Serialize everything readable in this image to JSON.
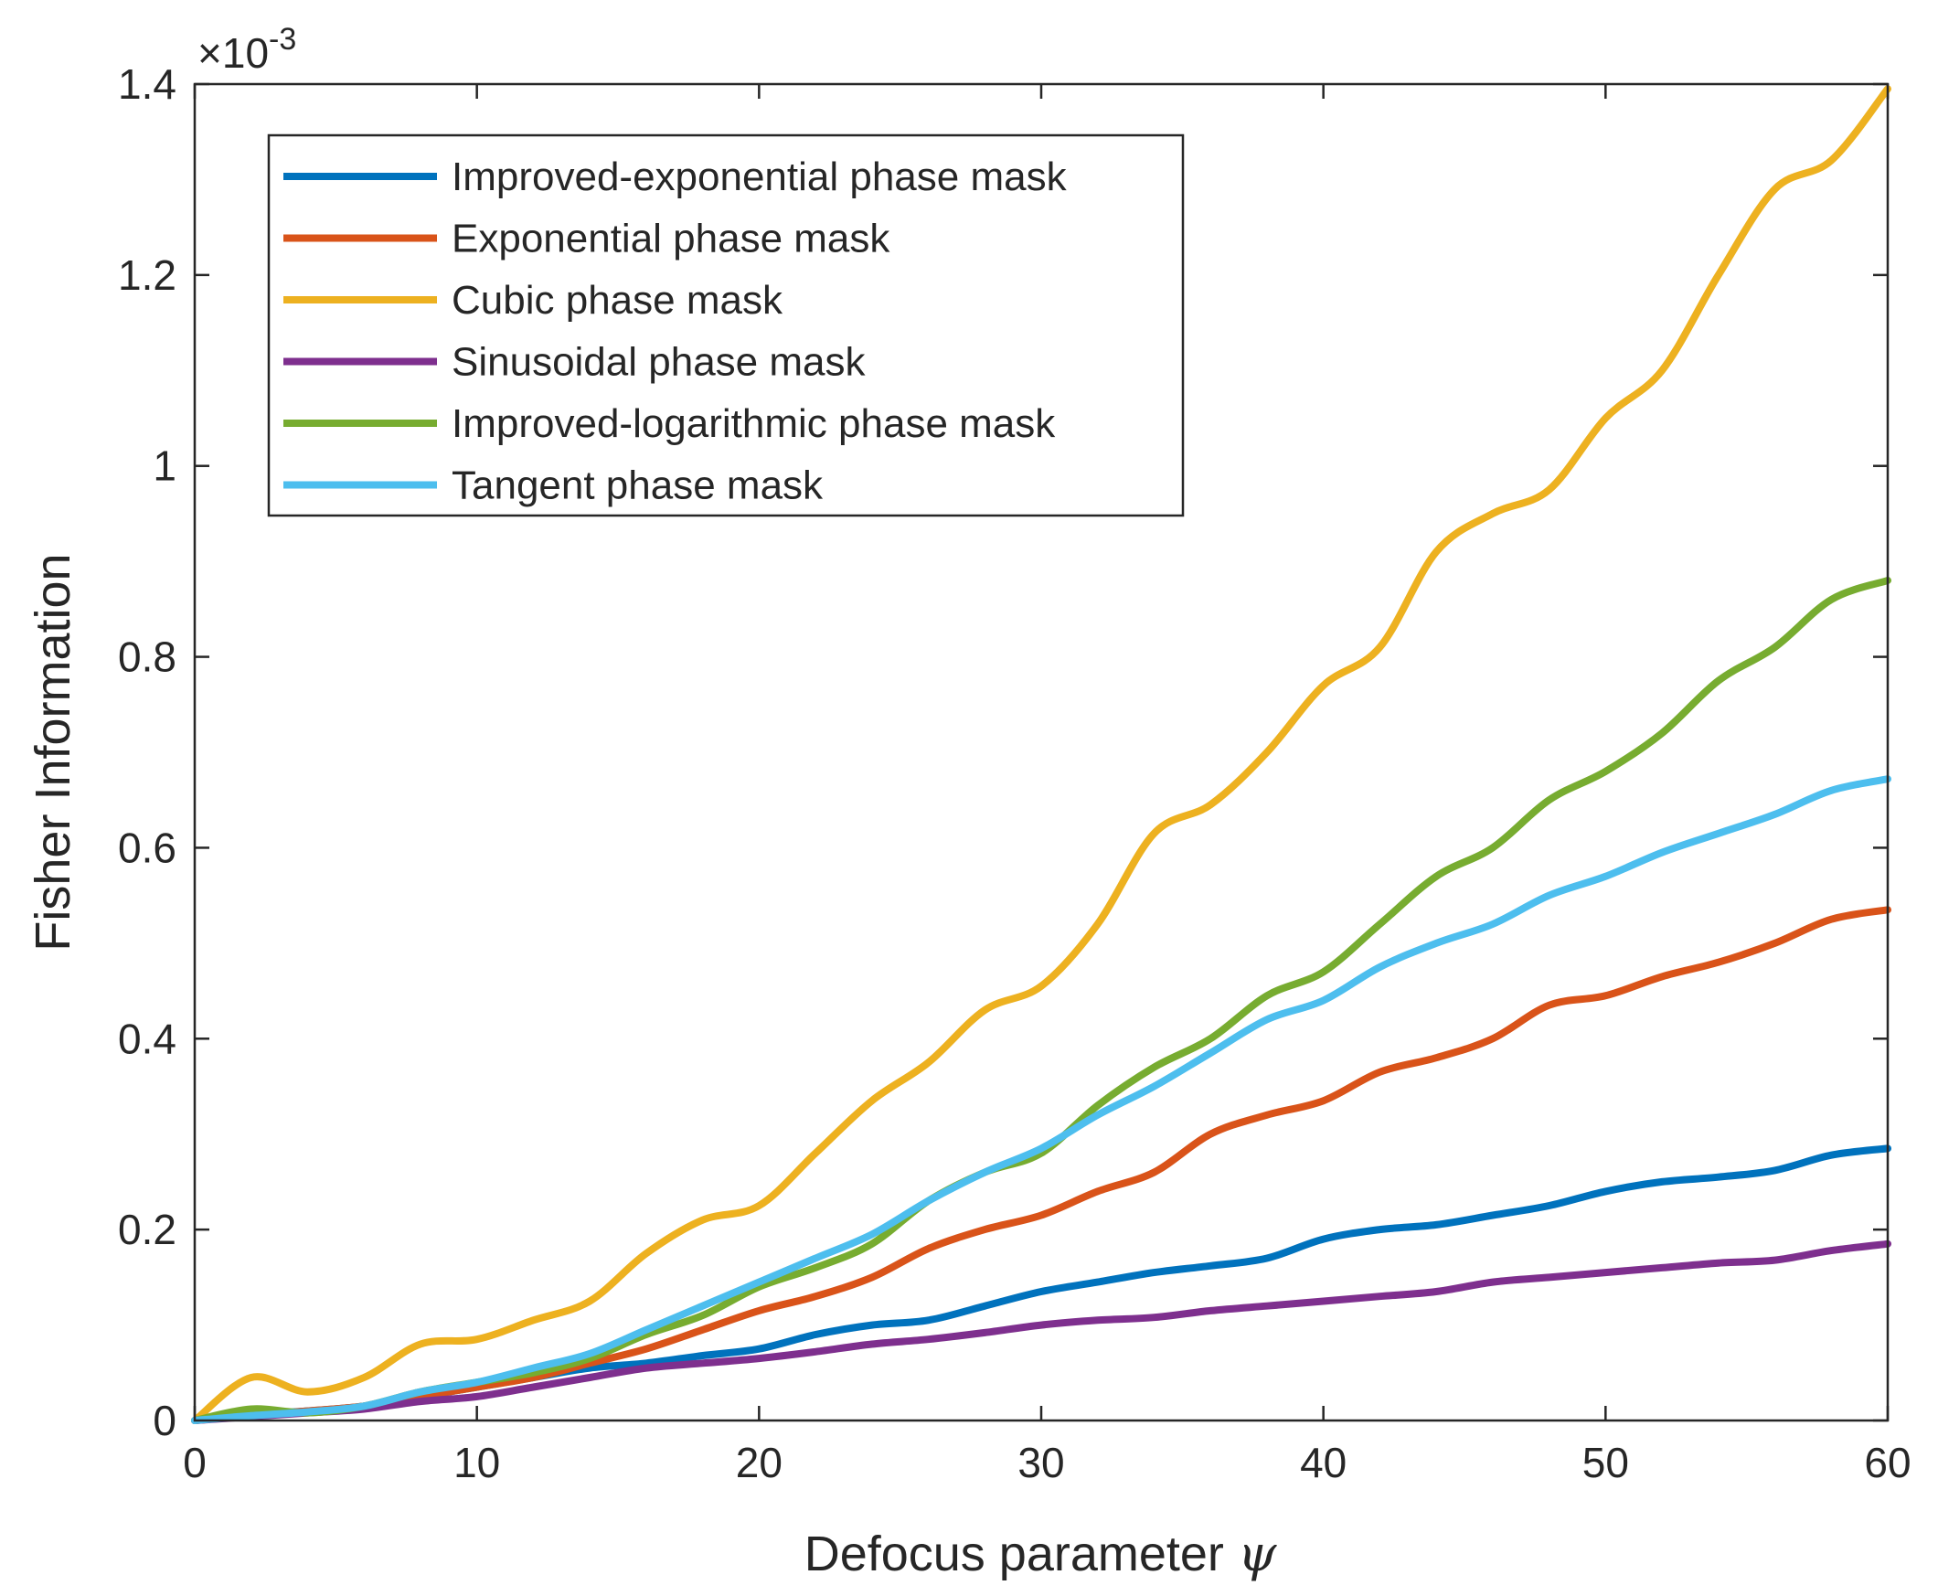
{
  "chart_data": {
    "type": "line",
    "title": "",
    "xlabel": "Defocus parameter",
    "xlabel_symbol": "ψ",
    "ylabel": "Fisher Information",
    "y_exponent_label": "×10",
    "y_exponent_power": "-3",
    "xlim": [
      0,
      60
    ],
    "ylim": [
      0,
      1.4
    ],
    "x_ticks": [
      0,
      10,
      20,
      30,
      40,
      50,
      60
    ],
    "x_tick_labels": [
      "0",
      "10",
      "20",
      "30",
      "40",
      "50",
      "60"
    ],
    "y_ticks": [
      0,
      0.2,
      0.4,
      0.6,
      0.8,
      1.0,
      1.2,
      1.4
    ],
    "y_tick_labels": [
      "0",
      "0.2",
      "0.4",
      "0.6",
      "0.8",
      "1",
      "1.2",
      "1.4"
    ],
    "legend_position": "top-left",
    "x": [
      0,
      2,
      4,
      6,
      8,
      10,
      12,
      14,
      16,
      18,
      20,
      22,
      24,
      26,
      28,
      30,
      32,
      34,
      36,
      38,
      40,
      42,
      44,
      46,
      48,
      50,
      52,
      54,
      56,
      58,
      60
    ],
    "series": [
      {
        "name": "Improved-exponential phase mask",
        "color": "#0072BD",
        "values": [
          0,
          0.006,
          0.01,
          0.015,
          0.025,
          0.035,
          0.045,
          0.055,
          0.06,
          0.068,
          0.075,
          0.09,
          0.1,
          0.105,
          0.12,
          0.135,
          0.145,
          0.155,
          0.162,
          0.17,
          0.19,
          0.2,
          0.205,
          0.215,
          0.225,
          0.24,
          0.25,
          0.255,
          0.262,
          0.278,
          0.285
        ]
      },
      {
        "name": "Exponential phase mask",
        "color": "#D95319",
        "values": [
          0,
          0.005,
          0.01,
          0.015,
          0.025,
          0.035,
          0.045,
          0.06,
          0.075,
          0.095,
          0.115,
          0.13,
          0.15,
          0.18,
          0.2,
          0.215,
          0.24,
          0.26,
          0.3,
          0.32,
          0.335,
          0.365,
          0.38,
          0.4,
          0.435,
          0.445,
          0.465,
          0.48,
          0.5,
          0.525,
          0.535
        ]
      },
      {
        "name": "Cubic phase mask",
        "color": "#EDB120",
        "values": [
          0,
          0.045,
          0.03,
          0.045,
          0.08,
          0.085,
          0.105,
          0.125,
          0.175,
          0.21,
          0.225,
          0.28,
          0.335,
          0.375,
          0.43,
          0.455,
          0.52,
          0.615,
          0.645,
          0.7,
          0.77,
          0.81,
          0.91,
          0.95,
          0.975,
          1.05,
          1.1,
          1.2,
          1.29,
          1.32,
          1.395
        ]
      },
      {
        "name": "Sinusoidal phase mask",
        "color": "#7E2F8E",
        "values": [
          0,
          0.004,
          0.008,
          0.012,
          0.02,
          0.025,
          0.035,
          0.045,
          0.055,
          0.06,
          0.065,
          0.072,
          0.08,
          0.085,
          0.092,
          0.1,
          0.105,
          0.108,
          0.115,
          0.12,
          0.125,
          0.13,
          0.135,
          0.145,
          0.15,
          0.155,
          0.16,
          0.165,
          0.168,
          0.178,
          0.185
        ]
      },
      {
        "name": "Improved-logarithmic phase mask",
        "color": "#77AC30",
        "values": [
          0,
          0.012,
          0.008,
          0.015,
          0.03,
          0.04,
          0.05,
          0.065,
          0.09,
          0.11,
          0.14,
          0.16,
          0.185,
          0.23,
          0.26,
          0.28,
          0.33,
          0.37,
          0.4,
          0.445,
          0.47,
          0.52,
          0.57,
          0.6,
          0.65,
          0.68,
          0.72,
          0.775,
          0.81,
          0.86,
          0.88
        ]
      },
      {
        "name": "Tangent phase mask",
        "color": "#4DBEEE",
        "values": [
          0,
          0.005,
          0.009,
          0.015,
          0.03,
          0.04,
          0.055,
          0.07,
          0.095,
          0.12,
          0.145,
          0.17,
          0.195,
          0.23,
          0.26,
          0.285,
          0.32,
          0.35,
          0.385,
          0.42,
          0.44,
          0.475,
          0.5,
          0.52,
          0.55,
          0.57,
          0.595,
          0.615,
          0.635,
          0.66,
          0.672
        ]
      }
    ]
  }
}
